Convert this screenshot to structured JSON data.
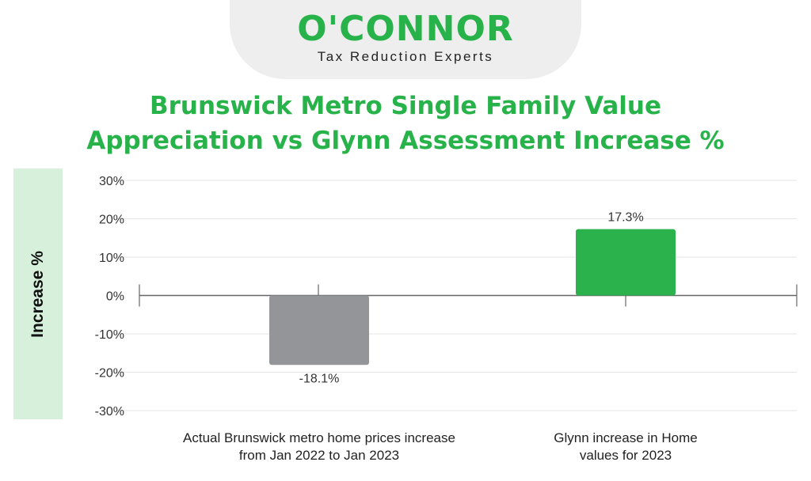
{
  "logo": {
    "brand": "O'CONNOR",
    "tagline": "Tax Reduction Experts"
  },
  "chart_data": {
    "type": "bar",
    "title": "Brunswick Metro Single Family Value Appreciation vs Glynn Assessment Increase %",
    "title_lines": [
      "Brunswick Metro Single Family Value",
      "Appreciation vs Glynn Assessment Increase %"
    ],
    "ylabel": "Increase %",
    "xlabel": "",
    "categories": [
      "Actual Brunswick metro home prices increase from Jan 2022 to Jan 2023",
      "Glynn increase in Home values for 2023"
    ],
    "category_lines": [
      [
        "Actual Brunswick metro home prices increase",
        "from Jan 2022 to Jan 2023"
      ],
      [
        "Glynn increase in Home",
        "values for 2023"
      ]
    ],
    "values": [
      -18.1,
      17.3
    ],
    "data_labels": [
      "-18.1%",
      "17.3%"
    ],
    "bar_colors": [
      "#939598",
      "#2bb24c"
    ],
    "ylim": [
      -30,
      30
    ],
    "yticks": [
      30,
      20,
      10,
      0,
      -10,
      -20,
      -30
    ],
    "ytick_labels": [
      "30%",
      "20%",
      "10%",
      "0%",
      "-10%",
      "-20%",
      "-30%"
    ],
    "grid": true,
    "legend": "none"
  },
  "colors": {
    "brand_green": "#27b24a",
    "grid": "#e6e6e6",
    "axis": "#666666",
    "ylabel_panel": "#d6f0dc"
  }
}
